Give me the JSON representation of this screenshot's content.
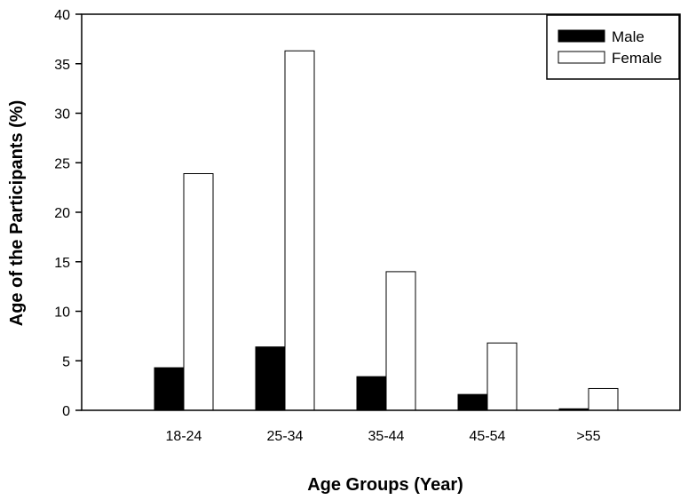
{
  "chart_data": {
    "type": "bar",
    "categories": [
      "18-24",
      "25-34",
      "35-44",
      "45-54",
      ">55"
    ],
    "series": [
      {
        "name": "Male",
        "values": [
          4.3,
          6.4,
          3.4,
          1.6,
          0.15
        ],
        "color": "#000000"
      },
      {
        "name": "Female",
        "values": [
          23.9,
          36.3,
          14.0,
          6.8,
          2.2
        ],
        "color": "#ffffff"
      }
    ],
    "xlabel": "Age Groups (Year)",
    "ylabel": "Age of the Participants (%)",
    "ylim": [
      0,
      40
    ],
    "yticks": [
      0,
      5,
      10,
      15,
      20,
      25,
      30,
      35,
      40
    ],
    "grid": false,
    "legend_position": "top-right"
  }
}
